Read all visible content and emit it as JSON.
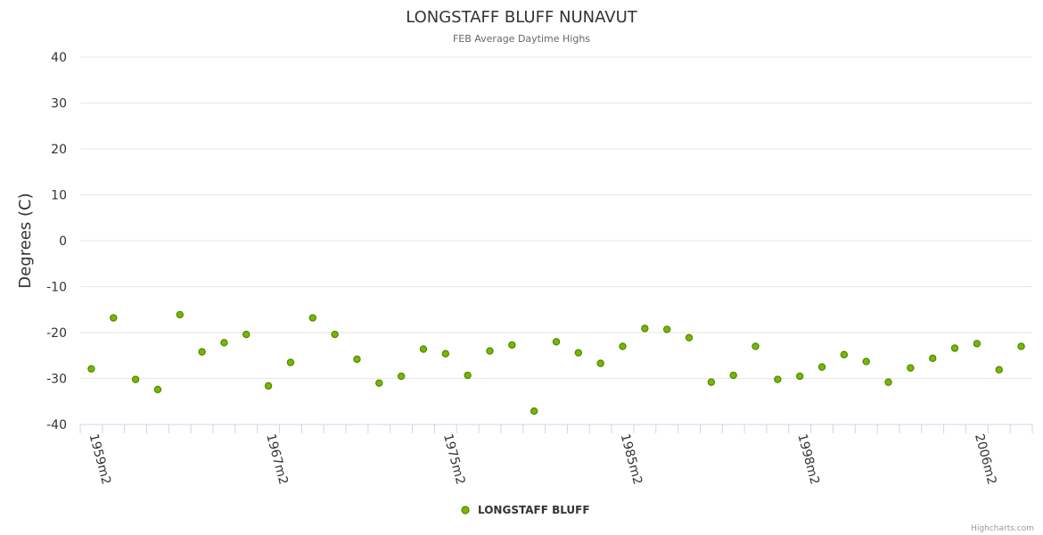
{
  "chart_data": {
    "type": "scatter",
    "title": "LONGSTAFF BLUFF NUNAVUT",
    "subtitle": "FEB Average Daytime Highs",
    "ylabel": "Degrees (C)",
    "xlabel": "",
    "ylim": [
      -40,
      40
    ],
    "yticks": [
      40,
      30,
      20,
      10,
      0,
      -10,
      -20,
      -30,
      -40
    ],
    "grid": true,
    "legend_position": "bottom-center",
    "xtick_labels": [
      {
        "index": 0,
        "label": "1959m2"
      },
      {
        "index": 8,
        "label": "1967m2"
      },
      {
        "index": 16,
        "label": "1975m2"
      },
      {
        "index": 24,
        "label": "1985m2"
      },
      {
        "index": 32,
        "label": "1998m2"
      },
      {
        "index": 40,
        "label": "2006m2"
      }
    ],
    "series": [
      {
        "name": "LONGSTAFF BLUFF",
        "color": "#7cb500",
        "stroke": "#4a8a00",
        "values": [
          -27.9,
          -16.8,
          -30.2,
          -32.4,
          -16.1,
          -24.2,
          -22.2,
          -20.4,
          -31.6,
          -26.5,
          -16.8,
          -20.4,
          -25.8,
          -31.0,
          -29.5,
          -23.6,
          -24.6,
          -29.3,
          -24.0,
          -22.7,
          -37.1,
          -22.0,
          -24.4,
          -26.7,
          -23.0,
          -19.1,
          -19.3,
          -21.1,
          -30.8,
          -29.3,
          -23.0,
          -30.2,
          -29.5,
          -27.5,
          -24.8,
          -26.3,
          -30.8,
          -27.7,
          -25.6,
          -23.4,
          -22.4,
          -28.1,
          -23.0
        ]
      }
    ]
  },
  "legend": {
    "label": "LONGSTAFF BLUFF"
  },
  "credits": "Highcharts.com"
}
